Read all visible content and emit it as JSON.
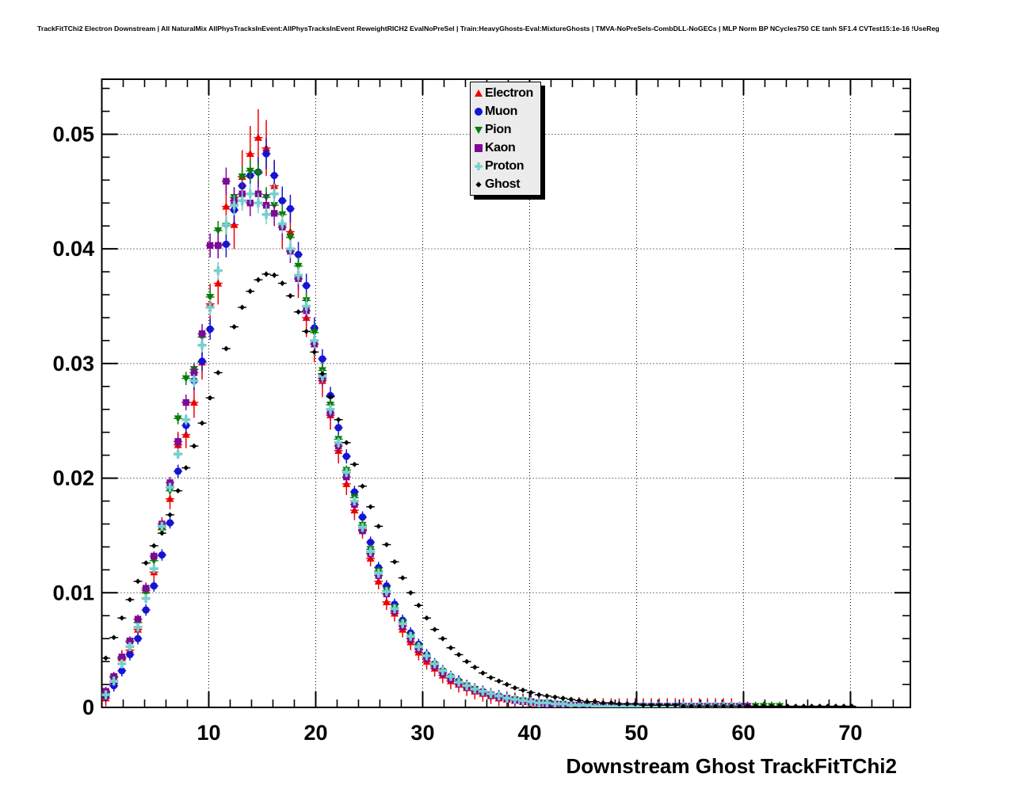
{
  "window": {
    "background": "#ffffff"
  },
  "chart_data": {
    "type": "scatter",
    "title": "TrackFitTChi2 Electron Downstream | All NaturalMix AllPhysTracksInEvent:AllPhysTracksInEvent ReweightRICH2 EvalNoPreSel | Train:HeavyGhosts-Eval:MixtureGhosts | TMVA-NoPreSels-CombDLL-NoGECs | MLP Norm BP NCycles750 CE tanh SF1.4 CVTest15:1e-16 !UseReg",
    "xlabel": "Downstream Ghost TrackFitTChi2",
    "ylabel": "",
    "xlim": [
      0,
      75.6
    ],
    "ylim": [
      0,
      0.0548
    ],
    "x_ticks": [
      10,
      20,
      30,
      40,
      50,
      60,
      70
    ],
    "x_minor_step": 2,
    "y_ticks": [
      0,
      0.01,
      0.02,
      0.03,
      0.04,
      0.05
    ],
    "y_tick_labels": [
      "0",
      "0.01",
      "0.02",
      "0.03",
      "0.04",
      "0.05"
    ],
    "y_minor_step": 0.002,
    "grid": "dotted",
    "legend_position": "top-center",
    "bin_width": 0.75,
    "series": [
      {
        "id": "electron",
        "label": "Electron",
        "marker": "triangle-up",
        "color": "#ee0000",
        "msize": 5,
        "err_rel": 0.05,
        "err_min": 0.0007,
        "x_start": 0.375,
        "x_step": 0.75,
        "y": [
          0.0008,
          0.0021,
          0.0043,
          0.005,
          0.0068,
          0.0102,
          0.0118,
          0.0158,
          0.0182,
          0.0229,
          0.0238,
          0.0266,
          0.0301,
          0.0352,
          0.037,
          0.0437,
          0.0421,
          0.0463,
          0.0483,
          0.0497,
          0.0488,
          0.0455,
          0.0421,
          0.0415,
          0.0376,
          0.034,
          0.0317,
          0.0285,
          0.0255,
          0.0224,
          0.0195,
          0.0172,
          0.0155,
          0.013,
          0.011,
          0.0092,
          0.0082,
          0.0068,
          0.0057,
          0.0048,
          0.004,
          0.0034,
          0.0028,
          0.0023,
          0.002,
          0.0017,
          0.0014,
          0.0012,
          0.001,
          0.0008,
          0.0007,
          0.0006,
          0.0005,
          0.0004,
          0.0004,
          0.0003,
          0.0003,
          0.0002,
          0.0002,
          0.0002,
          0.0001,
          0.0001,
          0.0001,
          0.0001,
          0.0001,
          0.0001,
          0.0001,
          0.0001,
          0.0001,
          0.0001,
          0.0001,
          0.0001,
          0.0001,
          0.0001,
          0.0001,
          0.0001,
          0.0001,
          0.0001,
          0.0001
        ]
      },
      {
        "id": "muon",
        "label": "Muon",
        "marker": "circle",
        "color": "#1414d2",
        "msize": 4.6,
        "err_rel": 0.028,
        "err_min": 0.0005,
        "x_start": 0.375,
        "x_step": 0.75,
        "y": [
          0.001,
          0.0019,
          0.0032,
          0.0046,
          0.006,
          0.0085,
          0.0106,
          0.0133,
          0.0161,
          0.0206,
          0.0246,
          0.0285,
          0.0302,
          0.033,
          0.0403,
          0.0404,
          0.0434,
          0.0455,
          0.0464,
          0.0467,
          0.0483,
          0.0464,
          0.0442,
          0.0435,
          0.0395,
          0.0368,
          0.0331,
          0.0304,
          0.0272,
          0.0244,
          0.0219,
          0.0188,
          0.0166,
          0.0144,
          0.0122,
          0.0106,
          0.009,
          0.0076,
          0.0065,
          0.0055,
          0.0046,
          0.0038,
          0.0032,
          0.0027,
          0.0023,
          0.0019,
          0.0016,
          0.0014,
          0.0011,
          0.001,
          0.0008,
          0.0007,
          0.0006,
          0.0005,
          0.0004,
          0.0003,
          0.0003,
          0.0002,
          0.0002,
          0.0002,
          0.0001,
          0.0001,
          0.0001,
          0.0001,
          0.0001,
          0.0001,
          0.0001,
          0.0001,
          0.0001,
          0.0001,
          0.0001,
          0.0001,
          0.0001,
          0.0001,
          0.0001,
          0.0001,
          0.0001
        ]
      },
      {
        "id": "pion",
        "label": "Pion",
        "marker": "triangle-down",
        "color": "#077d07",
        "msize": 5,
        "err_rel": 0.02,
        "err_min": 0.0004,
        "x_start": 0.375,
        "x_step": 0.75,
        "y": [
          0.0013,
          0.0026,
          0.0042,
          0.0057,
          0.0074,
          0.01,
          0.0128,
          0.0155,
          0.0189,
          0.0252,
          0.0287,
          0.0295,
          0.0323,
          0.0358,
          0.0416,
          0.042,
          0.0445,
          0.0463,
          0.0468,
          0.0466,
          0.0445,
          0.0438,
          0.043,
          0.041,
          0.0385,
          0.0355,
          0.0327,
          0.0294,
          0.0264,
          0.0234,
          0.0207,
          0.0183,
          0.0159,
          0.0138,
          0.0119,
          0.0102,
          0.0087,
          0.0074,
          0.0062,
          0.0053,
          0.0044,
          0.0037,
          0.0031,
          0.0026,
          0.0022,
          0.0019,
          0.0016,
          0.0013,
          0.0011,
          0.0009,
          0.0008,
          0.0007,
          0.0006,
          0.0005,
          0.0004,
          0.0004,
          0.0003,
          0.0003,
          0.0002,
          0.0002,
          0.0002,
          0.0001,
          0.0001,
          0.0001,
          0.0001,
          0.0001,
          0.0001,
          0.0001,
          0.0001,
          0.0001,
          0.0001,
          0.0001,
          0.0001,
          0.0001,
          0.0001,
          0.0001,
          0.0001,
          0.0001,
          0.0001,
          0.0001,
          0.0001,
          0.0001,
          0.0001,
          0.0001,
          0.0001
        ]
      },
      {
        "id": "kaon",
        "label": "Kaon",
        "marker": "square",
        "color": "#7d0996",
        "msize": 4.2,
        "err_rel": 0.026,
        "err_min": 0.0004,
        "x_start": 0.375,
        "x_step": 0.75,
        "y": [
          0.0014,
          0.0027,
          0.0044,
          0.0058,
          0.0077,
          0.0104,
          0.0132,
          0.016,
          0.0196,
          0.0232,
          0.0266,
          0.0292,
          0.0326,
          0.0403,
          0.0403,
          0.0459,
          0.0442,
          0.0448,
          0.044,
          0.0448,
          0.0438,
          0.0431,
          0.0419,
          0.0398,
          0.0374,
          0.0346,
          0.0317,
          0.0287,
          0.0257,
          0.0228,
          0.0201,
          0.0177,
          0.0154,
          0.0134,
          0.0115,
          0.0099,
          0.0084,
          0.0071,
          0.006,
          0.0051,
          0.0043,
          0.0036,
          0.003,
          0.0025,
          0.0021,
          0.0018,
          0.0015,
          0.0013,
          0.0011,
          0.0009,
          0.0008,
          0.0006,
          0.0005,
          0.0005,
          0.0004,
          0.0003,
          0.0003,
          0.0002,
          0.0002,
          0.0002,
          0.0001,
          0.0001,
          0.0001,
          0.0001,
          0.0001,
          0.0001,
          0.0001,
          0.0001,
          0.0001,
          0.0001,
          0.0001,
          0.0001,
          0.0001,
          0.0001,
          0.0001,
          0.0001,
          0.0001,
          0.0001,
          0.0001,
          0.0001,
          0.0001
        ]
      },
      {
        "id": "proton",
        "label": "Proton",
        "marker": "plus",
        "color": "#77cfcf",
        "msize": 5.5,
        "err_rel": 0.02,
        "err_min": 0.0004,
        "x_start": 0.375,
        "x_step": 0.75,
        "y": [
          0.0011,
          0.0023,
          0.0038,
          0.0053,
          0.007,
          0.0095,
          0.0121,
          0.0158,
          0.0192,
          0.0221,
          0.0251,
          0.0285,
          0.0316,
          0.0349,
          0.0381,
          0.0421,
          0.0438,
          0.0442,
          0.0448,
          0.044,
          0.043,
          0.0448,
          0.0422,
          0.04,
          0.0377,
          0.035,
          0.032,
          0.0289,
          0.026,
          0.0231,
          0.0205,
          0.018,
          0.0157,
          0.0136,
          0.0117,
          0.0101,
          0.0086,
          0.0073,
          0.0062,
          0.0053,
          0.0045,
          0.0038,
          0.0032,
          0.0027,
          0.0022,
          0.0019,
          0.0016,
          0.0014,
          0.0012,
          0.001,
          0.0008,
          0.0007,
          0.0006,
          0.0005,
          0.0004,
          0.0004,
          0.0003,
          0.0003,
          0.0002,
          0.0002,
          0.0002,
          0.0001,
          0.0001,
          0.0001,
          0.0001,
          0.0001,
          0.0001,
          0.0001,
          0.0001,
          0.0001,
          0.0001,
          0.0001,
          0.0001,
          0.0001,
          0.0001,
          0.0001,
          0.0001,
          0.0001,
          0.0001,
          0.0001
        ]
      },
      {
        "id": "ghost",
        "label": "Ghost",
        "marker": "diamond",
        "color": "#000000",
        "msize": 3.4,
        "err_rel": 0.006,
        "err_min": 0.0001,
        "x_start": 0.375,
        "x_step": 0.75,
        "y": [
          0.0043,
          0.0061,
          0.0078,
          0.0094,
          0.011,
          0.0126,
          0.0141,
          0.0152,
          0.0168,
          0.0189,
          0.0209,
          0.0228,
          0.0248,
          0.027,
          0.0292,
          0.0313,
          0.0332,
          0.0349,
          0.0363,
          0.0373,
          0.0378,
          0.0377,
          0.037,
          0.0359,
          0.0345,
          0.0328,
          0.031,
          0.0291,
          0.0271,
          0.0251,
          0.0231,
          0.0212,
          0.0193,
          0.0175,
          0.0158,
          0.0142,
          0.0127,
          0.0113,
          0.01,
          0.0089,
          0.0078,
          0.0068,
          0.006,
          0.0052,
          0.0046,
          0.004,
          0.0035,
          0.003,
          0.0026,
          0.0023,
          0.002,
          0.0017,
          0.0015,
          0.0013,
          0.0011,
          0.001,
          0.0009,
          0.0008,
          0.0007,
          0.0006,
          0.0005,
          0.0005,
          0.0004,
          0.0004,
          0.0003,
          0.0003,
          0.0003,
          0.0002,
          0.0002,
          0.0002,
          0.0002,
          0.0002,
          0.0001,
          0.0001,
          0.0001,
          0.0001,
          0.0001,
          0.0001,
          0.0001,
          0.0001,
          0.0001,
          0.0001,
          0.0001,
          0.0001,
          0.0001,
          0.0001,
          0.0001,
          0.0001,
          0.0001,
          0.0001,
          0.0001,
          0.0001,
          0.0001,
          0.0001
        ]
      }
    ]
  }
}
